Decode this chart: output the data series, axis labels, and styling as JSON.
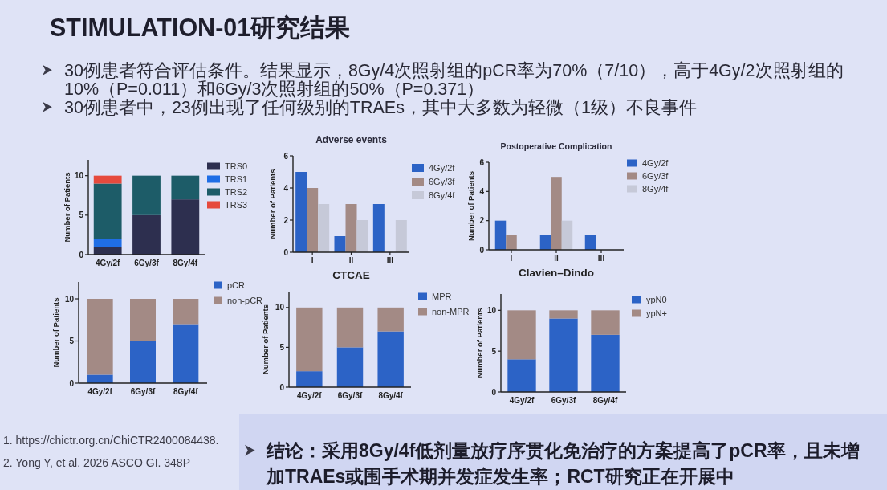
{
  "chart_data": [
    {
      "type": "other",
      "title": "STIMULATION-01研究结果",
      "annotations": [
        "30例患者符合评估条件。结果显示，8Gy/4次照射组的pCR率为70%（7/10），高于4Gy/2次照射组的10%（P=0.011）和6Gy/3次照射组的50%（P=0.371）",
        "30例患者中，23例出现了任何级别的TRAEs，其中大多数为轻微（1级）不良事件"
      ]
    },
    {
      "type": "bar",
      "stacked": true,
      "categories": [
        "4Gy/2f",
        "6Gy/3f",
        "8Gy/4f"
      ],
      "ylabel": "Number of Patients",
      "ylim": [
        0,
        12
      ],
      "yticks": [
        0,
        5,
        10
      ],
      "legend": "right",
      "series": [
        {
          "name": "TRS0",
          "color": "#2d2f4f",
          "values": [
            1,
            5,
            7
          ]
        },
        {
          "name": "TRS1",
          "color": "#1f6ee6",
          "values": [
            1,
            0,
            0
          ]
        },
        {
          "name": "TRS2",
          "color": "#1d5c68",
          "values": [
            7,
            5,
            3
          ]
        },
        {
          "name": "TRS3",
          "color": "#e64a3d",
          "values": [
            1,
            0,
            0
          ]
        }
      ]
    },
    {
      "type": "bar",
      "title": "Adverse events",
      "xlabel": "CTCAE",
      "categories": [
        "I",
        "II",
        "III"
      ],
      "ylabel": "Number of Patients",
      "ylim": [
        0,
        6
      ],
      "yticks": [
        0,
        2,
        4,
        6
      ],
      "legend": "right",
      "series": [
        {
          "name": "4Gy/2f",
          "color": "#2c63c6",
          "values": [
            5,
            1,
            3
          ]
        },
        {
          "name": "6Gy/3f",
          "color": "#a38a85",
          "values": [
            4,
            3,
            0
          ]
        },
        {
          "name": "8Gy/4f",
          "color": "#c6c9d8",
          "values": [
            3,
            2,
            2
          ]
        }
      ]
    },
    {
      "type": "bar",
      "title": "Postoperative Complication",
      "xlabel": "Clavien–Dindo",
      "categories": [
        "I",
        "II",
        "III"
      ],
      "ylabel": "Number of Patients",
      "ylim": [
        0,
        6
      ],
      "yticks": [
        0,
        2,
        4,
        6
      ],
      "legend": "right",
      "series": [
        {
          "name": "4Gy/2f",
          "color": "#2c63c6",
          "values": [
            2,
            1,
            1
          ]
        },
        {
          "name": "6Gy/3f",
          "color": "#a38a85",
          "values": [
            1,
            5,
            0
          ]
        },
        {
          "name": "8Gy/4f",
          "color": "#c6c9d8",
          "values": [
            0,
            2,
            0
          ]
        }
      ]
    },
    {
      "type": "bar",
      "stacked": true,
      "categories": [
        "4Gy/2f",
        "6Gy/3f",
        "8Gy/4f"
      ],
      "ylabel": "Number of Patients",
      "ylim": [
        0,
        12
      ],
      "yticks": [
        0,
        5,
        10
      ],
      "legend": "right",
      "series": [
        {
          "name": "pCR",
          "color": "#2c63c6",
          "values": [
            1,
            5,
            7
          ]
        },
        {
          "name": "non-pCR",
          "color": "#a38a85",
          "values": [
            9,
            5,
            3
          ]
        }
      ]
    },
    {
      "type": "bar",
      "stacked": true,
      "categories": [
        "4Gy/2f",
        "6Gy/3f",
        "8Gy/4f"
      ],
      "ylabel": "Number of Patients",
      "ylim": [
        0,
        12
      ],
      "yticks": [
        0,
        5,
        10
      ],
      "legend": "right",
      "series": [
        {
          "name": "MPR",
          "color": "#2c63c6",
          "values": [
            2,
            5,
            7
          ]
        },
        {
          "name": "non-MPR",
          "color": "#a38a85",
          "values": [
            8,
            5,
            3
          ]
        }
      ]
    },
    {
      "type": "bar",
      "stacked": true,
      "categories": [
        "4Gy/2f",
        "6Gy/3f",
        "8Gy/4f"
      ],
      "ylabel": "Number of Patients",
      "ylim": [
        0,
        12
      ],
      "yticks": [
        0,
        5,
        10
      ],
      "legend": "right",
      "series": [
        {
          "name": "ypN0",
          "color": "#2c63c6",
          "values": [
            4,
            9,
            7
          ]
        },
        {
          "name": "ypN+",
          "color": "#a38a85",
          "values": [
            6,
            1,
            3
          ]
        }
      ]
    },
    {
      "type": "other",
      "annotations": [
        "1. https://chictr.org.cn/ChiCTR2400084438.",
        "2. Yong Y, et al. 2026 ASCO GI. 348P"
      ]
    },
    {
      "type": "other",
      "annotations": [
        "结论：采用8Gy/4f低剂量放疗序贯化免治疗的方案提高了pCR率，且未增加TRAEs或围手术期并发症发生率；RCT研究正在开展中"
      ]
    }
  ]
}
